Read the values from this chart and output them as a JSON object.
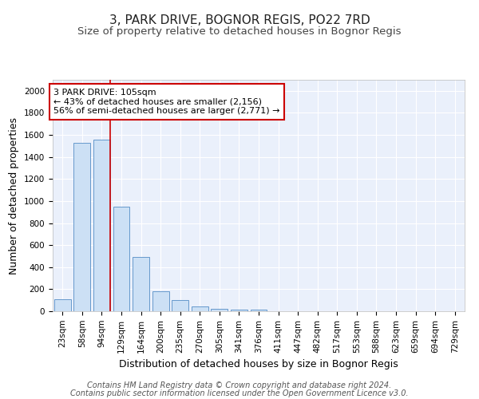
{
  "title": "3, PARK DRIVE, BOGNOR REGIS, PO22 7RD",
  "subtitle": "Size of property relative to detached houses in Bognor Regis",
  "xlabel": "Distribution of detached houses by size in Bognor Regis",
  "ylabel": "Number of detached properties",
  "footnote1": "Contains HM Land Registry data © Crown copyright and database right 2024.",
  "footnote2": "Contains public sector information licensed under the Open Government Licence v3.0.",
  "bin_labels": [
    "23sqm",
    "58sqm",
    "94sqm",
    "129sqm",
    "164sqm",
    "200sqm",
    "235sqm",
    "270sqm",
    "305sqm",
    "341sqm",
    "376sqm",
    "411sqm",
    "447sqm",
    "482sqm",
    "517sqm",
    "553sqm",
    "588sqm",
    "623sqm",
    "659sqm",
    "694sqm",
    "729sqm"
  ],
  "bar_values": [
    110,
    1530,
    1560,
    950,
    490,
    180,
    100,
    45,
    25,
    15,
    15,
    0,
    0,
    0,
    0,
    0,
    0,
    0,
    0,
    0,
    0
  ],
  "bar_color": "#cce0f5",
  "bar_edge_color": "#6699cc",
  "property_line_x": 2,
  "property_line_color": "#cc0000",
  "annotation_line1": "3 PARK DRIVE: 105sqm",
  "annotation_line2": "← 43% of detached houses are smaller (2,156)",
  "annotation_line3": "56% of semi-detached houses are larger (2,771) →",
  "ylim": [
    0,
    2100
  ],
  "yticks": [
    0,
    200,
    400,
    600,
    800,
    1000,
    1200,
    1400,
    1600,
    1800,
    2000
  ],
  "background_color": "#eaf0fb",
  "grid_color": "#ffffff",
  "title_fontsize": 11,
  "subtitle_fontsize": 9.5,
  "axis_label_fontsize": 9,
  "tick_fontsize": 7.5,
  "annotation_fontsize": 8,
  "footnote_fontsize": 7
}
